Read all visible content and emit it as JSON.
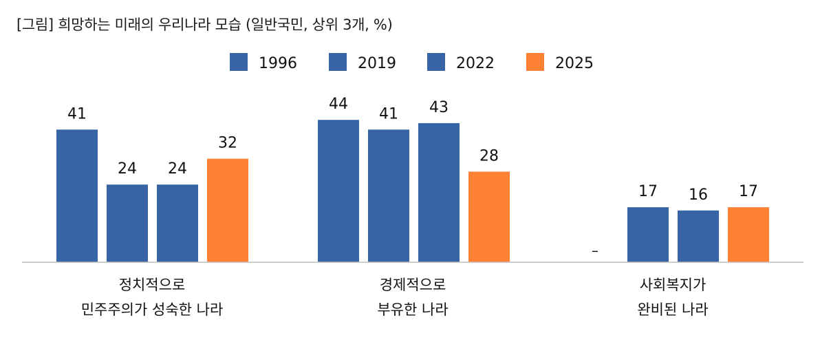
{
  "chart_data": {
    "type": "bar",
    "title": "[그림] 희망하는 미래의 우리나라 모습 (일반국민, 상위 3개, %)",
    "categories": [
      [
        "정치적으로",
        "민주주의가 성숙한 나라"
      ],
      [
        "경제적으로",
        "부유한 나라"
      ],
      [
        "사회복지가",
        "완비된 나라"
      ]
    ],
    "series": [
      {
        "name": "1996",
        "color": "#3764A4",
        "values": [
          41,
          44,
          null
        ],
        "labels": [
          "41",
          "44",
          "–"
        ]
      },
      {
        "name": "2019",
        "color": "#3764A4",
        "values": [
          24,
          41,
          17
        ],
        "labels": [
          "24",
          "41",
          "17"
        ]
      },
      {
        "name": "2022",
        "color": "#3764A4",
        "values": [
          24,
          43,
          16
        ],
        "labels": [
          "24",
          "43",
          "16"
        ]
      },
      {
        "name": "2025",
        "color": "#FF8133",
        "values": [
          32,
          28,
          17
        ],
        "labels": [
          "32",
          "28",
          "17"
        ]
      }
    ],
    "ylim": [
      0,
      46
    ],
    "xlabel": "",
    "ylabel": "",
    "grid": false,
    "legend_position": "top-center"
  }
}
